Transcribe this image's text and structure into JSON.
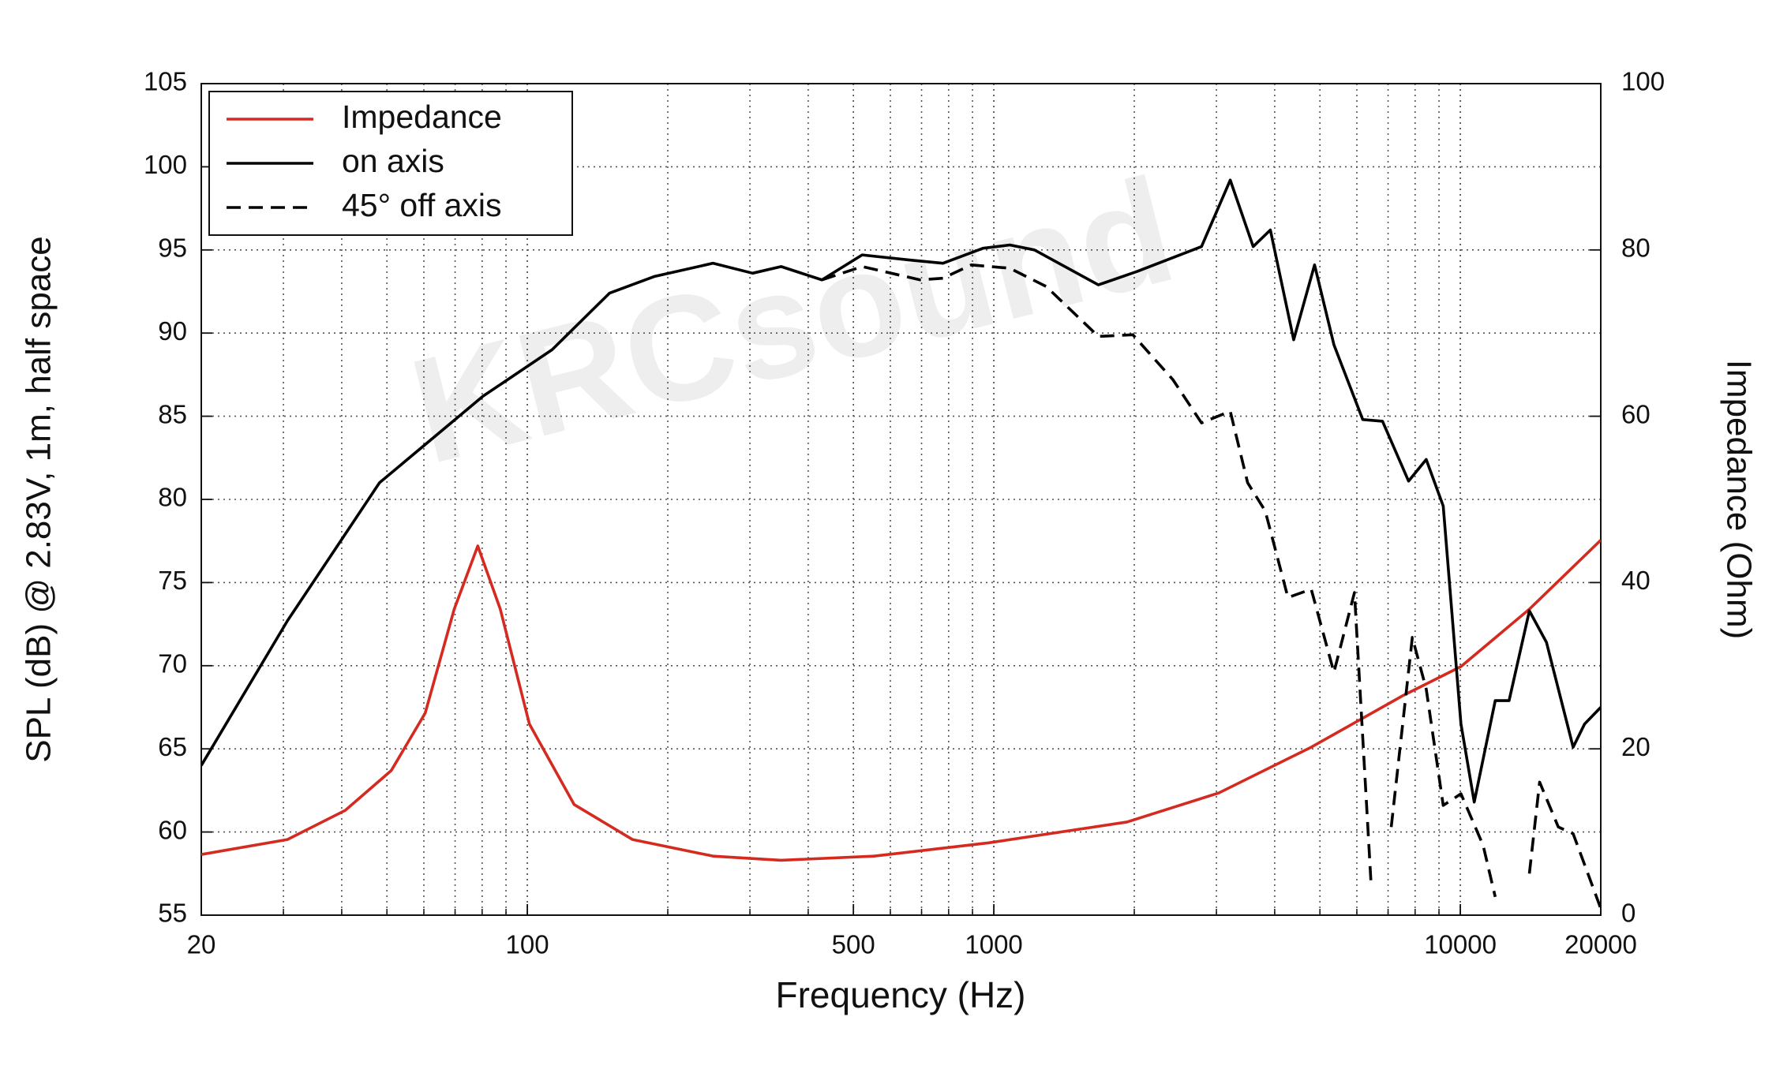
{
  "chart_data": {
    "type": "line",
    "xlabel": "Frequency (Hz)",
    "ylabel": "SPL (dB) @ 2.83V, 1m, half space",
    "y2label": "Impedance (Ohm)",
    "watermark": "KRCsound",
    "xscale": "log",
    "xlim": [
      20,
      20000
    ],
    "xticks": [
      20,
      100,
      500,
      1000,
      10000,
      20000
    ],
    "ylim": [
      55,
      105
    ],
    "yticks": [
      55,
      60,
      65,
      70,
      75,
      80,
      85,
      90,
      95,
      100,
      105
    ],
    "y2lim": [
      0,
      100
    ],
    "y2ticks": [
      0,
      20,
      40,
      60,
      80,
      100
    ],
    "grid": true,
    "legend": "upper left",
    "series": [
      {
        "name": "Impedance",
        "color": "#d42a20",
        "style": "solid",
        "axis": "y2",
        "x": [
          20,
          30.6,
          40.7,
          51.1,
          60.4,
          69.7,
          78.3,
          87.5,
          101,
          126,
          168,
          250,
          350,
          553,
          975,
          1929,
          3036,
          4790,
          7530,
          10030,
          14060,
          20000
        ],
        "values": [
          7.3,
          9.1,
          12.6,
          17.4,
          24.3,
          36.8,
          44.4,
          36.8,
          23.0,
          13.3,
          9.1,
          7.1,
          6.6,
          7.1,
          8.7,
          11.2,
          14.7,
          20.2,
          26.4,
          29.9,
          36.8,
          45.1
        ]
      },
      {
        "name": "on axis",
        "color": "#000000",
        "style": "solid",
        "x": [
          20,
          30.6,
          48.2,
          80.3,
          113,
          150,
          187,
          250,
          304,
          350,
          428,
          522,
          656,
          778,
          948,
          1082,
          1222,
          1675,
          2026,
          2787,
          3212,
          3597,
          3915,
          4393,
          4870,
          5358,
          6177,
          6810,
          7745,
          8450,
          9190,
          10030,
          10710,
          11880,
          12720,
          14060,
          15300,
          17450,
          18470,
          20000
        ],
        "values": [
          64.0,
          72.7,
          81.0,
          86.2,
          89.0,
          92.4,
          93.4,
          94.2,
          93.6,
          94.0,
          93.2,
          94.7,
          94.4,
          94.2,
          95.1,
          95.3,
          95.0,
          92.9,
          93.7,
          95.2,
          99.2,
          95.2,
          96.2,
          89.6,
          94.1,
          89.3,
          84.8,
          84.7,
          81.1,
          82.4,
          79.6,
          66.5,
          61.8,
          67.9,
          67.9,
          73.3,
          71.4,
          65.1,
          66.5,
          67.5
        ]
      },
      {
        "name": "45° off axis",
        "color": "#000000",
        "style": "dashed",
        "x": [
          428,
          522,
          695,
          778,
          895,
          1082,
          1295,
          1675,
          1986,
          2420,
          2787,
          3212,
          3500,
          3818,
          4270,
          4790,
          5358,
          5930,
          6430,
          6800,
          7110,
          7890,
          8450,
          9190,
          10030,
          11190,
          11880,
          12900,
          14060,
          14790,
          16220,
          17450,
          20000
        ],
        "values": [
          93.2,
          94.0,
          93.2,
          93.3,
          94.1,
          93.9,
          92.8,
          89.8,
          89.9,
          87.2,
          84.6,
          85.3,
          81.0,
          79.3,
          74.1,
          74.6,
          69.6,
          74.4,
          57.1,
          null,
          60.3,
          71.7,
          68.6,
          61.6,
          62.3,
          59.2,
          56.1,
          null,
          57.5,
          63.0,
          60.3,
          59.9,
          55.4
        ]
      }
    ]
  }
}
